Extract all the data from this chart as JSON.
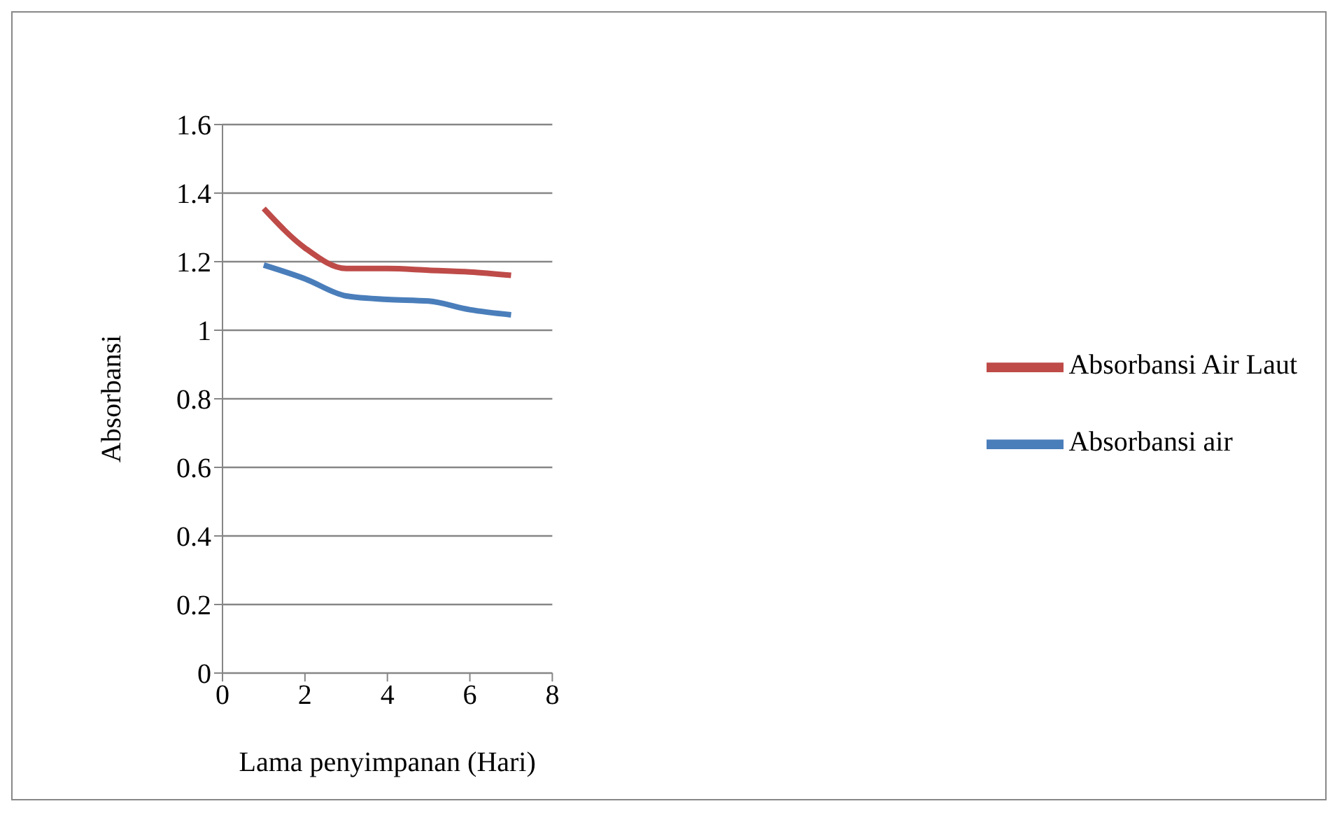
{
  "chart_data": {
    "type": "line",
    "xlabel": "Lama penyimpanan (Hari)",
    "ylabel": "Absorbansi",
    "x": [
      1,
      2,
      3,
      4,
      5,
      6,
      7
    ],
    "series": [
      {
        "name": "Absorbansi air",
        "color": "#4a7ebb",
        "values": [
          1.19,
          1.15,
          1.1,
          1.09,
          1.085,
          1.06,
          1.045
        ]
      },
      {
        "name": "Absorbansi Air Laut",
        "color": "#be4b48",
        "values": [
          1.355,
          1.24,
          1.18,
          1.18,
          1.175,
          1.17,
          1.16
        ]
      }
    ],
    "xlim": [
      0,
      8
    ],
    "xticks": [
      0,
      2,
      4,
      6,
      8
    ],
    "ylim": [
      0,
      1.6
    ],
    "yticks": [
      0,
      0.2,
      0.4,
      0.6,
      0.8,
      1,
      1.2,
      1.4,
      1.6
    ],
    "grid": "y",
    "legend": "right",
    "marker": "none",
    "line_style": "solid"
  }
}
